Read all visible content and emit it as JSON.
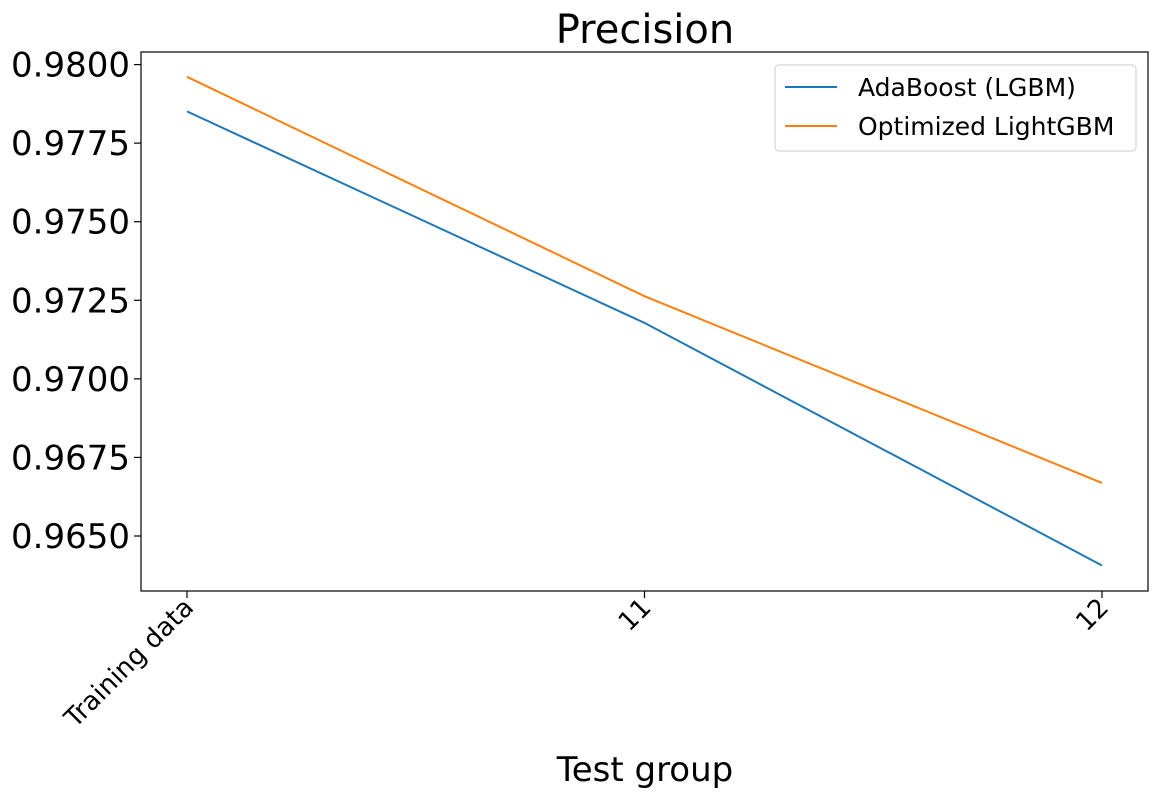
{
  "chart_data": {
    "type": "line",
    "title": "Precision",
    "xlabel": "Test group",
    "ylabel": "",
    "categories": [
      "Training data",
      "11",
      "12"
    ],
    "series": [
      {
        "name": "AdaBoost (LGBM)",
        "color": "#1f77b4",
        "values": [
          0.97851,
          0.97178,
          0.96406
        ]
      },
      {
        "name": "Optimized LightGBM",
        "color": "#ff7f0e",
        "values": [
          0.97961,
          0.97263,
          0.96669
        ]
      }
    ],
    "yticks": [
      "0.9650",
      "0.9675",
      "0.9700",
      "0.9725",
      "0.9750",
      "0.9775",
      "0.9800"
    ],
    "ylim": [
      0.96325,
      0.9804
    ],
    "grid": false,
    "legend_position": "top-right"
  }
}
